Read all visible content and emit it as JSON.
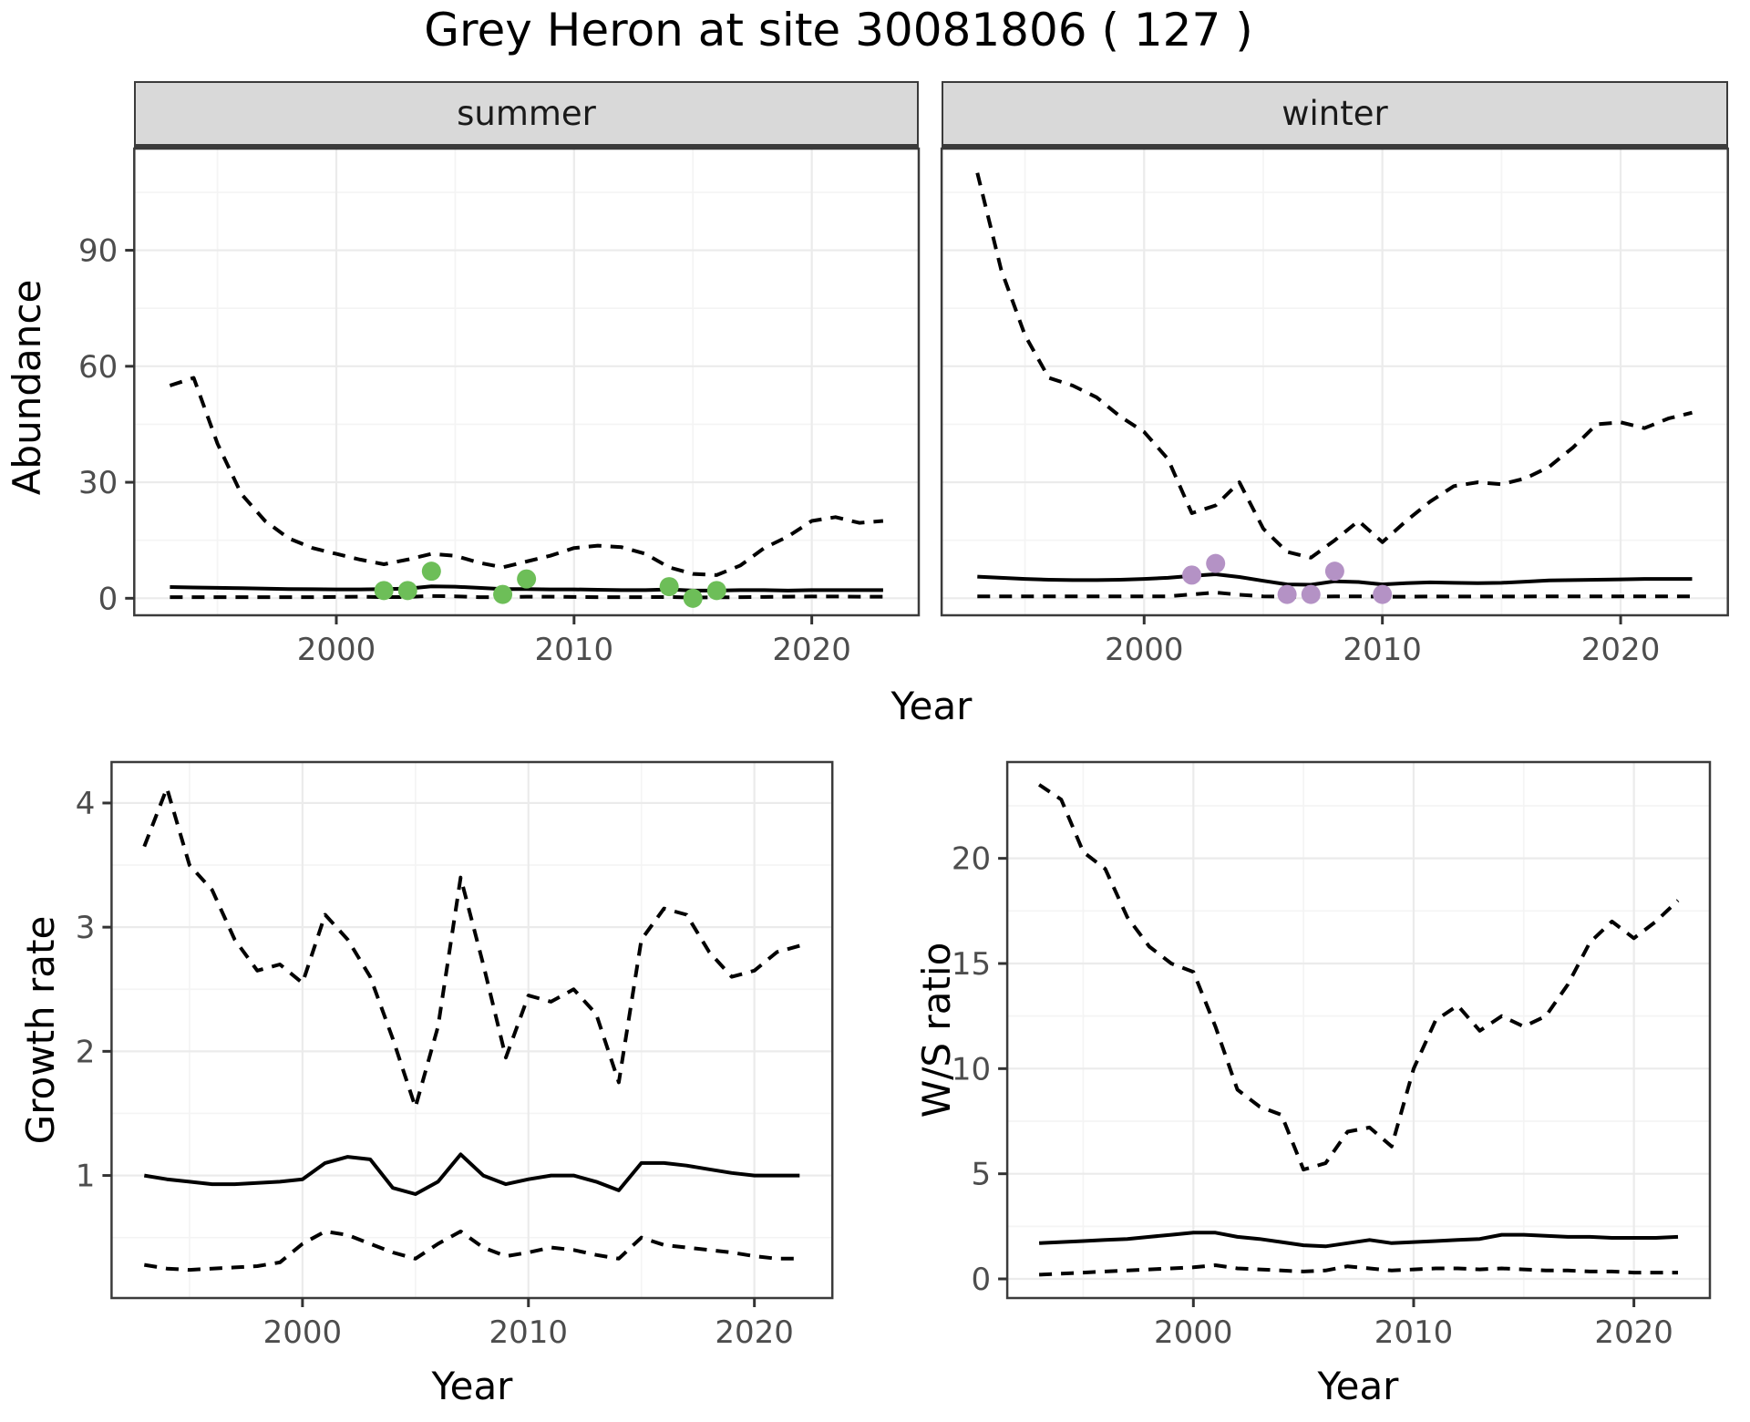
{
  "title": "Grey Heron at site 30081806 ( 127 )",
  "axis_titles": {
    "abundance": "Abundance",
    "year": "Year",
    "growth_rate": "Growth rate",
    "ws_ratio": "W/S ratio"
  },
  "facets": {
    "summer": "summer",
    "winter": "winter"
  },
  "colors": {
    "summer_points": "#6dbe58",
    "winter_points": "#b492c5",
    "grid_major": "#ebebeb",
    "grid_minor": "#f4f4f4",
    "strip_bg": "#d9d9d9",
    "panel_border": "#3b3b3b",
    "line": "#000000",
    "tick_text": "#4d4d4d",
    "title_text": "#000000"
  },
  "chart_data": [
    {
      "id": "abundance-summer",
      "type": "line",
      "facet": "summer",
      "ylabel": "Abundance",
      "xlabel": "Year",
      "xlim": [
        1991.5,
        2024.5
      ],
      "ylim": [
        -4.4,
        116.3
      ],
      "x_ticks": [
        2000,
        2010,
        2020
      ],
      "y_ticks": [
        0,
        30,
        60,
        90
      ],
      "x_minor": [
        1995,
        2005,
        2015
      ],
      "y_minor": [
        15,
        45,
        75,
        105
      ],
      "grid": true,
      "legend": "none",
      "years": [
        1993,
        1994,
        1995,
        1996,
        1997,
        1998,
        1999,
        2000,
        2001,
        2002,
        2003,
        2004,
        2005,
        2006,
        2007,
        2008,
        2009,
        2010,
        2011,
        2012,
        2013,
        2014,
        2015,
        2016,
        2017,
        2018,
        2019,
        2020,
        2021,
        2022,
        2023
      ],
      "series": [
        {
          "name": "upper_ci",
          "style": "dashed",
          "values": [
            55,
            57,
            40,
            27,
            20,
            15.5,
            13,
            11.5,
            10,
            8.8,
            10,
            11.5,
            11,
            9.2,
            8,
            9.5,
            11,
            13,
            13.6,
            13.2,
            11.5,
            8,
            6.3,
            6,
            8.5,
            13,
            16,
            20,
            21,
            19.5,
            20
          ]
        },
        {
          "name": "estimate",
          "style": "solid",
          "values": [
            2.9,
            2.8,
            2.7,
            2.6,
            2.5,
            2.4,
            2.35,
            2.3,
            2.3,
            2.4,
            2.5,
            3.1,
            3.0,
            2.7,
            2.4,
            2.4,
            2.3,
            2.3,
            2.2,
            2.1,
            2.1,
            2.3,
            2.0,
            2.0,
            2.1,
            2.1,
            2.0,
            2.1,
            2.1,
            2.1,
            2.1
          ]
        },
        {
          "name": "lower_ci",
          "style": "dashed",
          "values": [
            0.3,
            0.3,
            0.3,
            0.3,
            0.3,
            0.3,
            0.3,
            0.35,
            0.4,
            0.3,
            0.35,
            0.6,
            0.5,
            0.3,
            0.25,
            0.4,
            0.4,
            0.35,
            0.3,
            0.3,
            0.3,
            0.35,
            0.2,
            0.25,
            0.3,
            0.35,
            0.4,
            0.45,
            0.45,
            0.4,
            0.4
          ]
        }
      ],
      "observations": {
        "color_key": "summer_points",
        "data": [
          [
            2002,
            2
          ],
          [
            2003,
            2
          ],
          [
            2004,
            7
          ],
          [
            2007,
            1
          ],
          [
            2008,
            5
          ],
          [
            2014,
            3
          ],
          [
            2015,
            0
          ],
          [
            2016,
            2
          ]
        ]
      }
    },
    {
      "id": "abundance-winter",
      "type": "line",
      "facet": "winter",
      "ylabel": "Abundance",
      "xlabel": "Year",
      "xlim": [
        1991.5,
        2024.5
      ],
      "ylim": [
        -4.4,
        116.3
      ],
      "x_ticks": [
        2000,
        2010,
        2020
      ],
      "y_ticks": [
        0,
        30,
        60,
        90
      ],
      "x_minor": [
        1995,
        2005,
        2015
      ],
      "y_minor": [
        15,
        45,
        75,
        105
      ],
      "grid": true,
      "legend": "none",
      "years": [
        1993,
        1994,
        1995,
        1996,
        1997,
        1998,
        1999,
        2000,
        2001,
        2002,
        2003,
        2004,
        2005,
        2006,
        2007,
        2008,
        2009,
        2010,
        2011,
        2012,
        2013,
        2014,
        2015,
        2016,
        2017,
        2018,
        2019,
        2020,
        2021,
        2022,
        2023
      ],
      "series": [
        {
          "name": "upper_ci",
          "style": "dashed",
          "values": [
            110,
            85,
            68,
            57,
            55,
            52,
            47,
            43,
            36,
            22,
            24,
            30,
            18,
            12,
            10.5,
            15,
            20,
            14.5,
            20,
            25,
            29,
            30,
            29.5,
            31,
            34,
            39,
            45,
            45.5,
            44,
            46.5,
            48
          ]
        },
        {
          "name": "estimate",
          "style": "solid",
          "values": [
            5.6,
            5.3,
            5.0,
            4.8,
            4.7,
            4.7,
            4.8,
            5.0,
            5.3,
            5.8,
            6.2,
            5.5,
            4.5,
            3.6,
            3.5,
            4.4,
            4.2,
            3.6,
            3.9,
            4.1,
            4.0,
            3.9,
            4.0,
            4.3,
            4.6,
            4.7,
            4.8,
            4.9,
            5.0,
            5.0,
            5.0
          ]
        },
        {
          "name": "lower_ci",
          "style": "dashed",
          "values": [
            0.5,
            0.5,
            0.5,
            0.5,
            0.5,
            0.5,
            0.5,
            0.5,
            0.5,
            1.0,
            1.5,
            0.9,
            0.5,
            0.4,
            0.4,
            0.5,
            0.5,
            0.4,
            0.4,
            0.45,
            0.45,
            0.45,
            0.45,
            0.45,
            0.5,
            0.5,
            0.5,
            0.5,
            0.5,
            0.5,
            0.5
          ]
        }
      ],
      "observations": {
        "color_key": "winter_points",
        "data": [
          [
            2002,
            6
          ],
          [
            2003,
            9
          ],
          [
            2006,
            1
          ],
          [
            2007,
            1
          ],
          [
            2008,
            7
          ],
          [
            2010,
            1
          ]
        ]
      }
    },
    {
      "id": "growth-rate",
      "type": "line",
      "ylabel": "Growth rate",
      "xlabel": "Year",
      "xlim": [
        1991.55,
        2023.45
      ],
      "ylim": [
        0.013,
        4.33
      ],
      "x_ticks": [
        2000,
        2010,
        2020
      ],
      "y_ticks": [
        1,
        2,
        3,
        4
      ],
      "x_minor": [
        1995,
        2005,
        2015
      ],
      "y_minor": [
        0.5,
        1.5,
        2.5,
        3.5
      ],
      "grid": true,
      "legend": "none",
      "years": [
        1993,
        1994,
        1995,
        1996,
        1997,
        1998,
        1999,
        2000,
        2001,
        2002,
        2003,
        2004,
        2005,
        2006,
        2007,
        2008,
        2009,
        2010,
        2011,
        2012,
        2013,
        2014,
        2015,
        2016,
        2017,
        2018,
        2019,
        2020,
        2021,
        2022
      ],
      "series": [
        {
          "name": "upper_ci",
          "style": "dashed",
          "values": [
            3.65,
            4.12,
            3.5,
            3.3,
            2.9,
            2.65,
            2.7,
            2.55,
            3.1,
            2.9,
            2.6,
            2.1,
            1.55,
            2.2,
            3.4,
            2.7,
            1.95,
            2.45,
            2.4,
            2.5,
            2.3,
            1.75,
            2.9,
            3.15,
            3.1,
            2.8,
            2.6,
            2.65,
            2.8,
            2.85
          ]
        },
        {
          "name": "estimate",
          "style": "solid",
          "values": [
            1.0,
            0.97,
            0.95,
            0.93,
            0.93,
            0.94,
            0.95,
            0.97,
            1.1,
            1.15,
            1.13,
            0.9,
            0.85,
            0.95,
            1.17,
            1.0,
            0.93,
            0.97,
            1.0,
            1.0,
            0.95,
            0.88,
            1.1,
            1.1,
            1.08,
            1.05,
            1.02,
            1.0,
            1.0,
            1.0
          ]
        },
        {
          "name": "lower_ci",
          "style": "dashed",
          "values": [
            0.28,
            0.25,
            0.24,
            0.25,
            0.26,
            0.27,
            0.3,
            0.45,
            0.55,
            0.52,
            0.45,
            0.38,
            0.33,
            0.45,
            0.55,
            0.42,
            0.35,
            0.38,
            0.42,
            0.4,
            0.36,
            0.33,
            0.5,
            0.44,
            0.42,
            0.4,
            0.38,
            0.35,
            0.33,
            0.33
          ]
        }
      ]
    },
    {
      "id": "ws-ratio",
      "type": "line",
      "ylabel": "W/S ratio",
      "xlabel": "Year",
      "xlim": [
        1991.55,
        2023.45
      ],
      "ylim": [
        -0.91,
        24.58
      ],
      "x_ticks": [
        2000,
        2010,
        2020
      ],
      "y_ticks": [
        0,
        5,
        10,
        15,
        20
      ],
      "x_minor": [
        1995,
        2005,
        2015
      ],
      "y_minor": [
        2.5,
        7.5,
        12.5,
        17.5,
        22.5
      ],
      "grid": true,
      "legend": "none",
      "years": [
        1993,
        1994,
        1995,
        1996,
        1997,
        1998,
        1999,
        2000,
        2001,
        2002,
        2003,
        2004,
        2005,
        2006,
        2007,
        2008,
        2009,
        2010,
        2011,
        2012,
        2013,
        2014,
        2015,
        2016,
        2017,
        2018,
        2019,
        2020,
        2021,
        2022
      ],
      "series": [
        {
          "name": "upper_ci",
          "style": "dashed",
          "values": [
            23.5,
            22.8,
            20.3,
            19.5,
            17.2,
            15.8,
            15.0,
            14.6,
            12.0,
            9.0,
            8.2,
            7.8,
            5.2,
            5.5,
            7.0,
            7.2,
            6.3,
            10.0,
            12.3,
            13.0,
            11.8,
            12.5,
            12.0,
            12.5,
            14.0,
            16.0,
            17.0,
            16.2,
            17.0,
            18.0
          ]
        },
        {
          "name": "estimate",
          "style": "solid",
          "values": [
            1.7,
            1.75,
            1.8,
            1.85,
            1.9,
            2.0,
            2.1,
            2.2,
            2.2,
            2.0,
            1.9,
            1.75,
            1.6,
            1.55,
            1.7,
            1.85,
            1.7,
            1.75,
            1.8,
            1.85,
            1.9,
            2.1,
            2.1,
            2.05,
            2.0,
            2.0,
            1.95,
            1.95,
            1.95,
            2.0
          ]
        },
        {
          "name": "lower_ci",
          "style": "dashed",
          "values": [
            0.2,
            0.25,
            0.3,
            0.35,
            0.4,
            0.45,
            0.5,
            0.55,
            0.65,
            0.5,
            0.45,
            0.4,
            0.35,
            0.4,
            0.6,
            0.5,
            0.4,
            0.45,
            0.5,
            0.5,
            0.45,
            0.5,
            0.45,
            0.4,
            0.4,
            0.35,
            0.35,
            0.3,
            0.3,
            0.3
          ]
        }
      ]
    }
  ]
}
